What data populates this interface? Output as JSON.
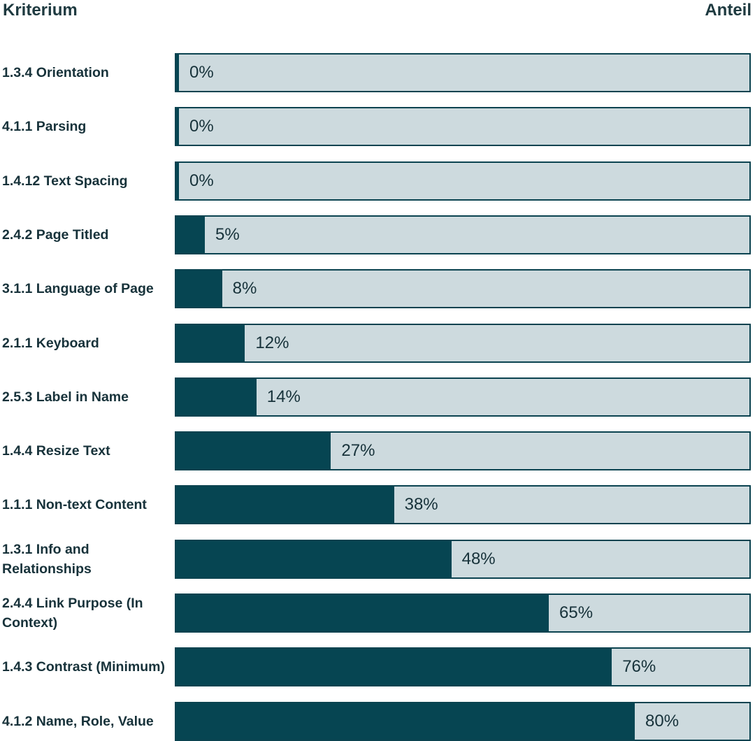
{
  "header": {
    "left_label": "Kriterium",
    "right_label": "Anteil"
  },
  "colors": {
    "fill": "#064552",
    "track": "#cddade",
    "border": "#0b4350"
  },
  "chart_data": {
    "type": "bar",
    "orientation": "horizontal",
    "xlim": [
      0,
      100
    ],
    "value_suffix": "%",
    "categories": [
      "1.3.4 Orientation",
      "4.1.1 Parsing",
      "1.4.12 Text Spacing",
      "2.4.2 Page Titled",
      "3.1.1 Language of Page",
      "2.1.1 Keyboard",
      "2.5.3 Label in Name",
      "1.4.4 Resize Text",
      "1.1.1 Non-text Content",
      "1.3.1 Info and Relationships",
      "2.4.4 Link Purpose (In Context)",
      "1.4.3 Contrast (Minimum)",
      "4.1.2 Name, Role, Value"
    ],
    "values": [
      0,
      0,
      0,
      5,
      8,
      12,
      14,
      27,
      38,
      48,
      65,
      76,
      80
    ],
    "value_labels": [
      "0%",
      "0%",
      "0%",
      "5%",
      "8%",
      "12%",
      "14%",
      "27%",
      "38%",
      "48%",
      "65%",
      "76%",
      "80%"
    ]
  }
}
